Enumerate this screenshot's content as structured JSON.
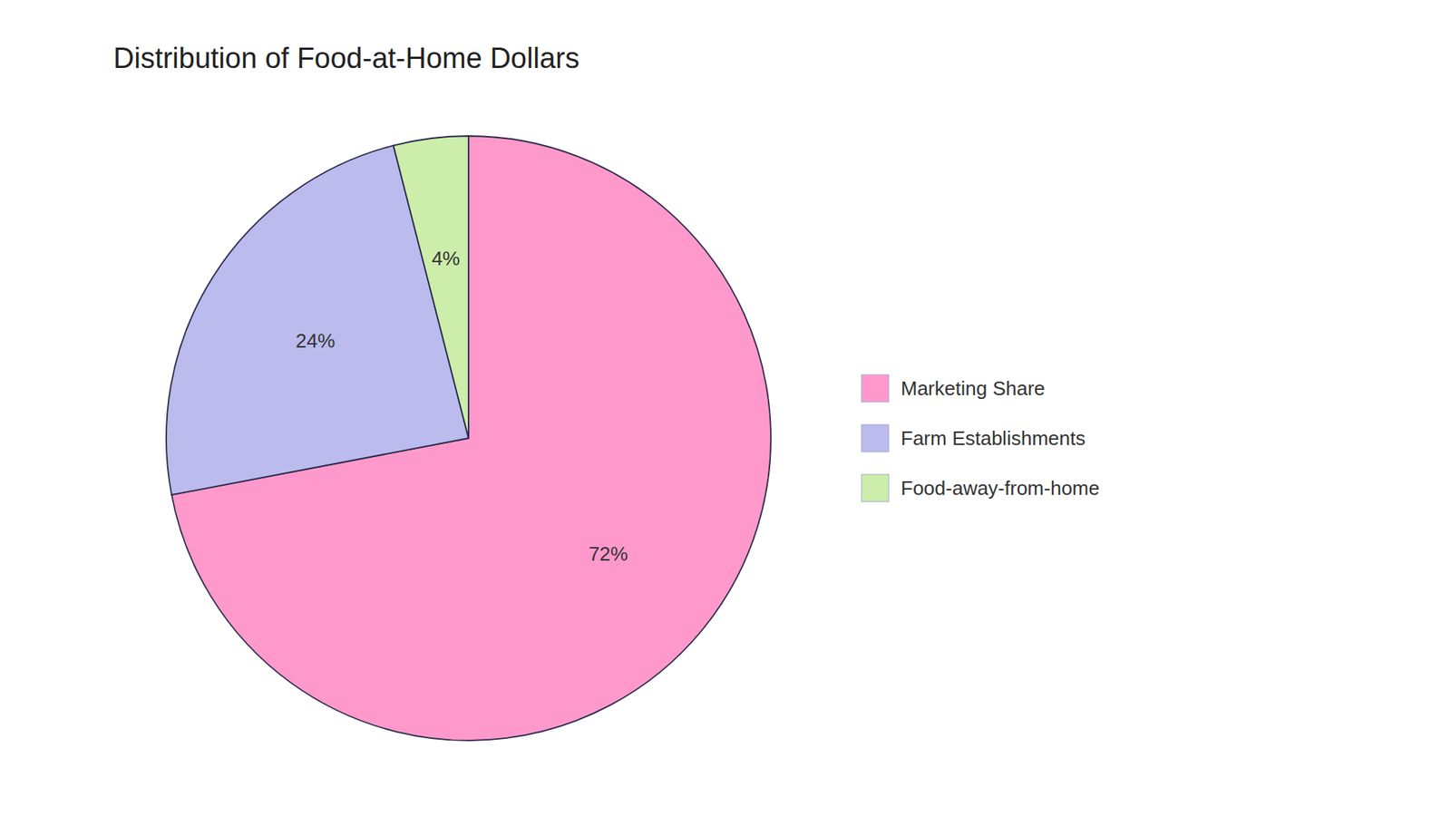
{
  "chart_data": {
    "type": "pie",
    "title": "Distribution of Food-at-Home Dollars",
    "categories": [
      "Marketing Share",
      "Farm Establishments",
      "Food-away-from-home"
    ],
    "values": [
      72,
      24,
      4
    ],
    "value_labels": [
      "72%",
      "24%",
      "4%"
    ],
    "colors": [
      "#FF99CC",
      "#BBBBEE",
      "#CCEEAA"
    ],
    "data_labels": true,
    "legend": "right"
  }
}
